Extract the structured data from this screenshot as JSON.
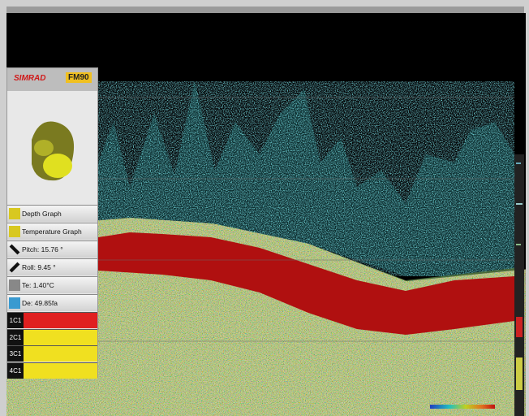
{
  "panel": {
    "brand": "SIMRAD",
    "model": "FM90",
    "rows": [
      "Depth Graph",
      "Temperature Graph",
      "Pitch: 15.76 °",
      "Roll: 9.45 °",
      "Te: 1.40°C",
      "De: 49.85fa"
    ],
    "channels": [
      "1C1",
      "2C1",
      "3C1",
      "4C1"
    ]
  }
}
